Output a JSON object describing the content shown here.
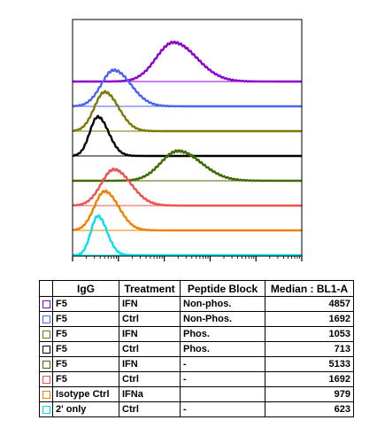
{
  "chart_data": {
    "type": "area",
    "chart_kind": "flow cytometry staggered histogram overlay (offset)",
    "x_scale": "log",
    "xlim": [
      10,
      1000000
    ],
    "series": [
      {
        "name": "F5 IFN Non-phos.",
        "color": "#8e00d0",
        "mode": 0.44,
        "width": 0.075,
        "peak_height": 0.92,
        "median": "4857"
      },
      {
        "name": "F5 Ctrl Non-Phos.",
        "color": "#4a64f0",
        "mode": 0.18,
        "width": 0.055,
        "peak_height": 0.85,
        "median": "1692"
      },
      {
        "name": "F5 IFN Phos.",
        "color": "#7a7a00",
        "mode": 0.14,
        "width": 0.045,
        "peak_height": 0.92,
        "median": "1053"
      },
      {
        "name": "F5 Ctrl Phos.",
        "color": "#000000",
        "mode": 0.11,
        "width": 0.035,
        "peak_height": 0.92,
        "median": "713"
      },
      {
        "name": "F5 IFN -",
        "color": "#3f6a00",
        "mode": 0.46,
        "width": 0.075,
        "peak_height": 0.7,
        "median": "5133"
      },
      {
        "name": "F5 Ctrl -",
        "color": "#f05050",
        "mode": 0.18,
        "width": 0.055,
        "peak_height": 0.85,
        "median": "1692"
      },
      {
        "name": "Isotype Ctrl IFNa",
        "color": "#f08000",
        "mode": 0.14,
        "width": 0.045,
        "peak_height": 0.92,
        "median": "979"
      },
      {
        "name": "2' only Ctrl -",
        "color": "#00e0f0",
        "mode": 0.11,
        "width": 0.03,
        "peak_height": 0.92,
        "median": "623"
      }
    ]
  },
  "legend": {
    "headers": {
      "igg": "IgG",
      "treatment": "Treatment",
      "peptide": "Peptide Block",
      "median": "Median : BL1-A"
    },
    "rows": [
      {
        "color": "#8e00d0",
        "igg": "F5",
        "treatment": "IFN",
        "peptide": "Non-phos.",
        "median": "4857"
      },
      {
        "color": "#4a64f0",
        "igg": "F5",
        "treatment": "Ctrl",
        "peptide": "Non-Phos.",
        "median": "1692"
      },
      {
        "color": "#7a7a00",
        "igg": "F5",
        "treatment": "IFN",
        "peptide": "Phos.",
        "median": "1053"
      },
      {
        "color": "#000000",
        "igg": "F5",
        "treatment": "Ctrl",
        "peptide": "Phos.",
        "median": "713"
      },
      {
        "color": "#3f6a00",
        "igg": "F5",
        "treatment": "IFN",
        "peptide": "-",
        "median": "5133"
      },
      {
        "color": "#f05050",
        "igg": "F5",
        "treatment": "Ctrl",
        "peptide": "-",
        "median": "1692"
      },
      {
        "color": "#f08000",
        "igg": "Isotype Ctrl",
        "treatment": "IFNa",
        "peptide": "",
        "median": "979"
      },
      {
        "color": "#00e0f0",
        "igg": "2' only",
        "treatment": "Ctrl",
        "peptide": "-",
        "median": "623"
      }
    ]
  }
}
